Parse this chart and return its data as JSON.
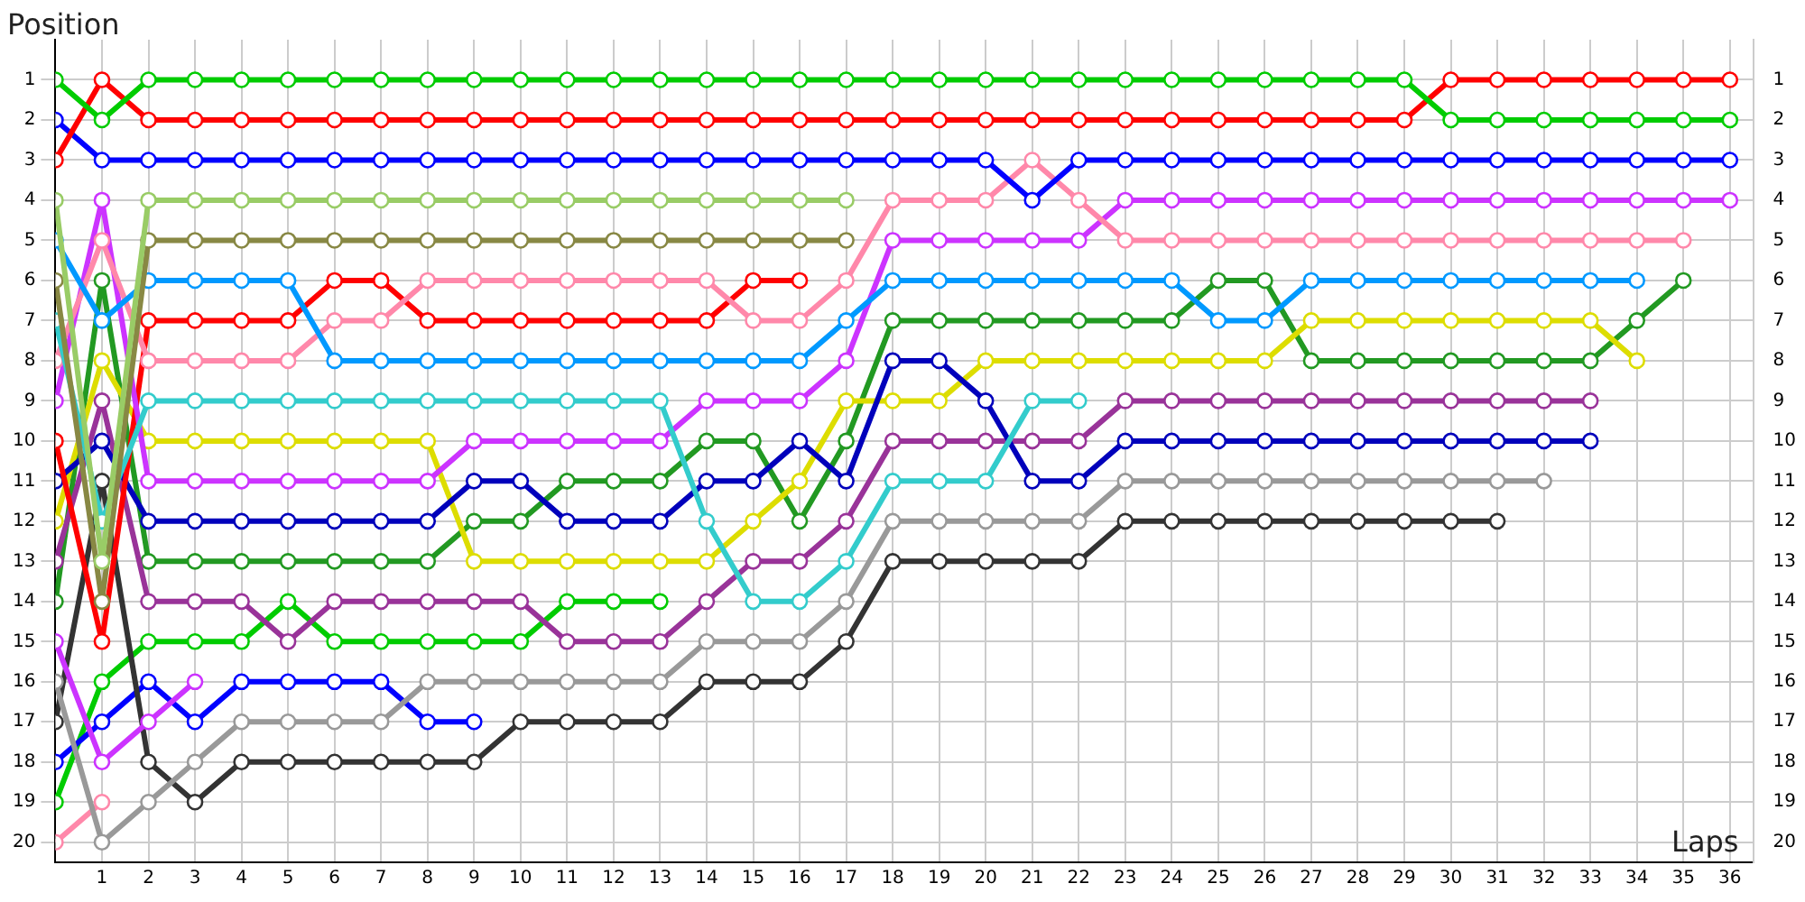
{
  "chart_data": {
    "type": "line",
    "xlabel": "Laps",
    "ylabel": "Position",
    "x": [
      0,
      1,
      2,
      3,
      4,
      5,
      6,
      7,
      8,
      9,
      10,
      11,
      12,
      13,
      14,
      15,
      16,
      17,
      18,
      19,
      20,
      21,
      22,
      23,
      24,
      25,
      26,
      27,
      28,
      29,
      30,
      31,
      32,
      33,
      34,
      35,
      36
    ],
    "xlim": [
      0,
      36.5
    ],
    "xticks": [
      1,
      2,
      3,
      4,
      5,
      6,
      7,
      8,
      9,
      10,
      11,
      12,
      13,
      14,
      15,
      16,
      17,
      18,
      19,
      20,
      21,
      22,
      23,
      24,
      25,
      26,
      27,
      28,
      29,
      30,
      31,
      32,
      33,
      34,
      35,
      36
    ],
    "ylim": [
      20.5,
      0
    ],
    "yticks": [
      1,
      2,
      3,
      4,
      5,
      6,
      7,
      8,
      9,
      10,
      11,
      12,
      13,
      14,
      15,
      16,
      17,
      18,
      19,
      20
    ],
    "y2lim": [
      20.5,
      0
    ],
    "y2ticks": [
      1,
      2,
      3,
      4,
      5,
      6,
      7,
      8,
      9,
      10,
      11,
      12,
      13,
      14,
      15,
      16,
      17,
      18,
      19,
      20
    ],
    "grid": true,
    "legend": false,
    "marker": "circle",
    "line_style": "solid",
    "series": [
      {
        "color": "#00cc00",
        "values": [
          1,
          2,
          1,
          1,
          1,
          1,
          1,
          1,
          1,
          1,
          1,
          1,
          1,
          1,
          1,
          1,
          1,
          1,
          1,
          1,
          1,
          1,
          1,
          1,
          1,
          1,
          1,
          1,
          1,
          1,
          2,
          2,
          2,
          2,
          2,
          2,
          2
        ]
      },
      {
        "color": "#ff0000",
        "values": [
          3,
          1,
          2,
          2,
          2,
          2,
          2,
          2,
          2,
          2,
          2,
          2,
          2,
          2,
          2,
          2,
          2,
          2,
          2,
          2,
          2,
          2,
          2,
          2,
          2,
          2,
          2,
          2,
          2,
          2,
          1,
          1,
          1,
          1,
          1,
          1,
          1
        ]
      },
      {
        "color": "#0000ff",
        "values": [
          2,
          3,
          3,
          3,
          3,
          3,
          3,
          3,
          3,
          3,
          3,
          3,
          3,
          3,
          3,
          3,
          3,
          3,
          3,
          3,
          3,
          4,
          3,
          3,
          3,
          3,
          3,
          3,
          3,
          3,
          3,
          3,
          3,
          3,
          3,
          3,
          3
        ]
      },
      {
        "color": "#99cc66",
        "values": [
          4,
          13,
          4,
          4,
          4,
          4,
          4,
          4,
          4,
          4,
          4,
          4,
          4,
          4,
          4,
          4,
          4,
          4,
          null,
          null,
          null,
          null,
          null,
          null,
          null,
          null,
          null,
          null,
          null,
          null,
          null,
          null,
          null,
          null,
          null,
          null,
          null
        ]
      },
      {
        "color": "#888844",
        "values": [
          6,
          14,
          5,
          5,
          5,
          5,
          5,
          5,
          5,
          5,
          5,
          5,
          5,
          5,
          5,
          5,
          5,
          5,
          null,
          null,
          null,
          null,
          null,
          null,
          null,
          null,
          null,
          null,
          null,
          null,
          null,
          null,
          null,
          null,
          null,
          null,
          null
        ]
      },
      {
        "color": "#0099ff",
        "values": [
          5,
          7,
          6,
          6,
          6,
          6,
          8,
          8,
          8,
          8,
          8,
          8,
          8,
          8,
          8,
          8,
          8,
          7,
          6,
          6,
          6,
          6,
          6,
          6,
          6,
          7,
          7,
          6,
          6,
          6,
          6,
          6,
          6,
          6,
          6,
          null,
          null
        ]
      },
      {
        "color": "#33cccc",
        "values": [
          7,
          12,
          9,
          9,
          9,
          9,
          9,
          9,
          9,
          9,
          9,
          9,
          9,
          9,
          12,
          14,
          14,
          13,
          11,
          11,
          11,
          9,
          9,
          null,
          null,
          null,
          null,
          null,
          null,
          null,
          null,
          null,
          null,
          null,
          null,
          null,
          null
        ]
      },
      {
        "color": "#ff88aa",
        "values": [
          8,
          5,
          8,
          8,
          8,
          8,
          7,
          7,
          6,
          6,
          6,
          6,
          6,
          6,
          6,
          7,
          7,
          6,
          4,
          4,
          4,
          3,
          4,
          5,
          5,
          5,
          5,
          5,
          5,
          5,
          5,
          5,
          5,
          5,
          5,
          5,
          null
        ]
      },
      {
        "color": "#cc33ff",
        "values": [
          9,
          4,
          11,
          11,
          11,
          11,
          11,
          11,
          11,
          10,
          10,
          10,
          10,
          10,
          9,
          9,
          9,
          8,
          5,
          5,
          5,
          5,
          5,
          4,
          4,
          4,
          4,
          4,
          4,
          4,
          4,
          4,
          4,
          4,
          4,
          4,
          4
        ]
      },
      {
        "color": "#ff0000",
        "values": [
          10,
          15,
          7,
          7,
          7,
          7,
          6,
          6,
          7,
          7,
          7,
          7,
          7,
          7,
          7,
          6,
          6,
          null,
          null,
          null,
          null,
          null,
          null,
          null,
          null,
          null,
          null,
          null,
          null,
          null,
          null,
          null,
          null,
          null,
          null,
          null,
          null
        ]
      },
      {
        "color": "#0000bb",
        "values": [
          11,
          10,
          12,
          12,
          12,
          12,
          12,
          12,
          12,
          11,
          11,
          12,
          12,
          12,
          11,
          11,
          10,
          11,
          8,
          8,
          9,
          11,
          11,
          10,
          10,
          10,
          10,
          10,
          10,
          10,
          10,
          10,
          10,
          10,
          null,
          null,
          null
        ]
      },
      {
        "color": "#dddd00",
        "values": [
          12,
          8,
          10,
          10,
          10,
          10,
          10,
          10,
          10,
          13,
          13,
          13,
          13,
          13,
          13,
          12,
          11,
          9,
          9,
          9,
          8,
          8,
          8,
          8,
          8,
          8,
          8,
          7,
          7,
          7,
          7,
          7,
          7,
          7,
          8,
          null,
          null
        ]
      },
      {
        "color": "#993399",
        "values": [
          13,
          9,
          14,
          14,
          14,
          15,
          14,
          14,
          14,
          14,
          14,
          15,
          15,
          15,
          14,
          13,
          13,
          12,
          10,
          10,
          10,
          10,
          10,
          9,
          9,
          9,
          9,
          9,
          9,
          9,
          9,
          9,
          9,
          9,
          null,
          null,
          null
        ]
      },
      {
        "color": "#229922",
        "values": [
          14,
          6,
          13,
          13,
          13,
          13,
          13,
          13,
          13,
          12,
          12,
          11,
          11,
          11,
          10,
          10,
          12,
          10,
          7,
          7,
          7,
          7,
          7,
          7,
          7,
          6,
          6,
          8,
          8,
          8,
          8,
          8,
          8,
          8,
          7,
          6,
          null
        ]
      },
      {
        "color": "#cc33ff",
        "values": [
          15,
          18,
          17,
          16,
          null,
          null,
          null,
          null,
          null,
          null,
          null,
          null,
          null,
          null,
          null,
          null,
          null,
          null,
          null,
          null,
          null,
          null,
          null,
          null,
          null,
          null,
          null,
          null,
          null,
          null,
          null,
          null,
          null,
          null,
          null,
          null,
          null
        ]
      },
      {
        "color": "#999999",
        "values": [
          16,
          20,
          19,
          18,
          17,
          17,
          17,
          17,
          16,
          16,
          16,
          16,
          16,
          16,
          15,
          15,
          15,
          14,
          12,
          12,
          12,
          12,
          12,
          11,
          11,
          11,
          11,
          11,
          11,
          11,
          11,
          11,
          11,
          null,
          null,
          null,
          null
        ]
      },
      {
        "color": "#333333",
        "values": [
          17,
          11,
          18,
          19,
          18,
          18,
          18,
          18,
          18,
          18,
          17,
          17,
          17,
          17,
          16,
          16,
          16,
          15,
          13,
          13,
          13,
          13,
          13,
          12,
          12,
          12,
          12,
          12,
          12,
          12,
          12,
          12,
          null,
          null,
          null,
          null,
          null
        ]
      },
      {
        "color": "#0000ff",
        "values": [
          18,
          17,
          16,
          17,
          16,
          16,
          16,
          16,
          17,
          17,
          null,
          null,
          null,
          null,
          null,
          null,
          null,
          null,
          null,
          null,
          null,
          null,
          null,
          null,
          null,
          null,
          null,
          null,
          null,
          null,
          null,
          null,
          null,
          null,
          null,
          null,
          null
        ]
      },
      {
        "color": "#00cc00",
        "values": [
          19,
          16,
          15,
          15,
          15,
          14,
          15,
          15,
          15,
          15,
          15,
          14,
          14,
          14,
          null,
          null,
          null,
          null,
          null,
          null,
          null,
          null,
          null,
          null,
          null,
          null,
          null,
          null,
          null,
          null,
          null,
          null,
          null,
          null,
          null,
          null,
          null
        ]
      },
      {
        "color": "#ff88aa",
        "values": [
          20,
          19,
          null,
          null,
          null,
          null,
          null,
          null,
          null,
          null,
          null,
          null,
          null,
          null,
          null,
          null,
          null,
          null,
          null,
          null,
          null,
          null,
          null,
          null,
          null,
          null,
          null,
          null,
          null,
          null,
          null,
          null,
          null,
          null,
          null,
          null,
          null
        ]
      }
    ]
  }
}
